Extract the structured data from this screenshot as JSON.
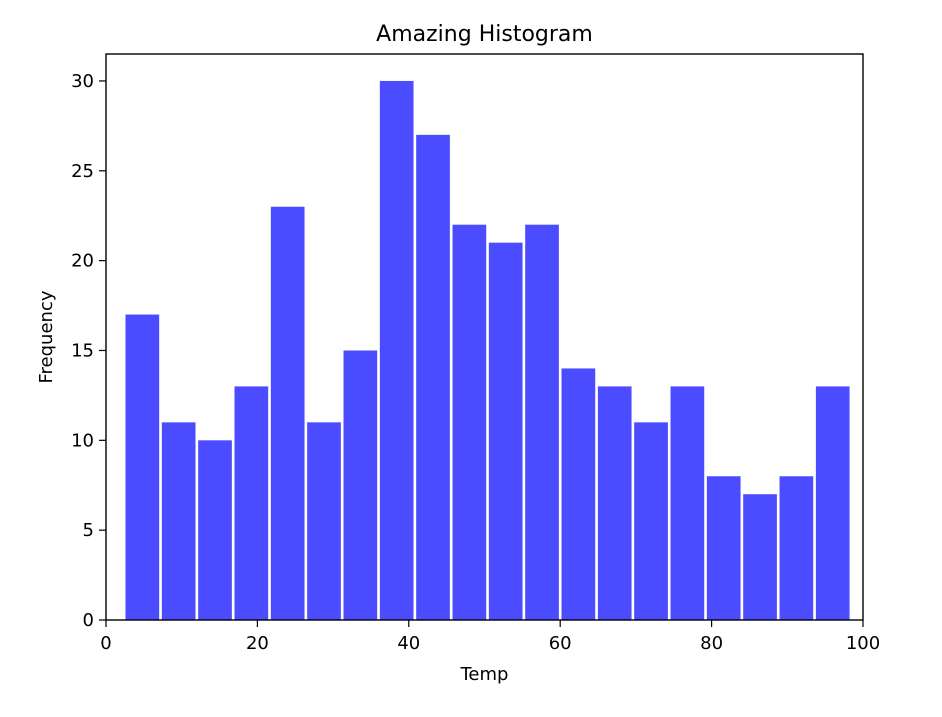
{
  "chart_data": {
    "type": "bar",
    "title": "Amazing Histogram",
    "xlabel": "Temp",
    "ylabel": "Frequency",
    "xlim": [
      0,
      100
    ],
    "ylim": [
      0,
      31.5
    ],
    "xticks": [
      0,
      20,
      40,
      60,
      80,
      100
    ],
    "yticks": [
      0,
      5,
      10,
      15,
      20,
      25,
      30
    ],
    "bar_color": "#4b4bff",
    "grid": false,
    "legend": "none",
    "bins": [
      {
        "x_start": 2.4,
        "x_end": 7.2,
        "value": 17
      },
      {
        "x_start": 7.2,
        "x_end": 12.0,
        "value": 11
      },
      {
        "x_start": 12.0,
        "x_end": 16.8,
        "value": 10
      },
      {
        "x_start": 16.8,
        "x_end": 21.6,
        "value": 13
      },
      {
        "x_start": 21.6,
        "x_end": 26.4,
        "value": 23
      },
      {
        "x_start": 26.4,
        "x_end": 31.2,
        "value": 11
      },
      {
        "x_start": 31.2,
        "x_end": 36.0,
        "value": 15
      },
      {
        "x_start": 36.0,
        "x_end": 40.8,
        "value": 30
      },
      {
        "x_start": 40.8,
        "x_end": 45.6,
        "value": 27
      },
      {
        "x_start": 45.6,
        "x_end": 50.4,
        "value": 22
      },
      {
        "x_start": 50.4,
        "x_end": 55.2,
        "value": 21
      },
      {
        "x_start": 55.2,
        "x_end": 60.0,
        "value": 22
      },
      {
        "x_start": 60.0,
        "x_end": 64.8,
        "value": 14
      },
      {
        "x_start": 64.8,
        "x_end": 69.6,
        "value": 13
      },
      {
        "x_start": 69.6,
        "x_end": 74.4,
        "value": 11
      },
      {
        "x_start": 74.4,
        "x_end": 79.2,
        "value": 13
      },
      {
        "x_start": 79.2,
        "x_end": 84.0,
        "value": 8
      },
      {
        "x_start": 84.0,
        "x_end": 88.8,
        "value": 7
      },
      {
        "x_start": 88.8,
        "x_end": 93.6,
        "value": 8
      },
      {
        "x_start": 93.6,
        "x_end": 98.4,
        "value": 13
      }
    ]
  }
}
